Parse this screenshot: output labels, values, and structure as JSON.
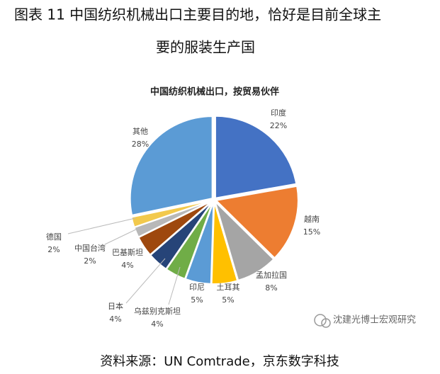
{
  "figure_title": [
    "图表 11  中国纺织机械出口主要目的地，恰好是目前全球主",
    "要的服装生产国"
  ],
  "chart_data": {
    "type": "pie",
    "title": "中国纺织机械出口，按贸易伙伴",
    "categories": [
      "印度",
      "越南",
      "孟加拉国",
      "土耳其",
      "印尼",
      "乌兹别克斯坦",
      "日本",
      "巴基斯坦",
      "中国台湾",
      "德国",
      "其他"
    ],
    "values": [
      22,
      15,
      8,
      5,
      5,
      4,
      4,
      4,
      2,
      2,
      28
    ],
    "value_labels": [
      "22%",
      "15%",
      "8%",
      "5%",
      "5%",
      "4%",
      "4%",
      "4%",
      "2%",
      "2%",
      "28%"
    ],
    "colors": [
      "#4472c4",
      "#ed7d31",
      "#a5a5a5",
      "#ffc000",
      "#5b9bd5",
      "#70ad47",
      "#264478",
      "#9e480e",
      "#b8b8b8",
      "#f2c94c",
      "#5b9bd5"
    ]
  },
  "watermark": "沈建光博士宏观研究",
  "source": "资料来源：UN Comtrade，京东数字科技"
}
